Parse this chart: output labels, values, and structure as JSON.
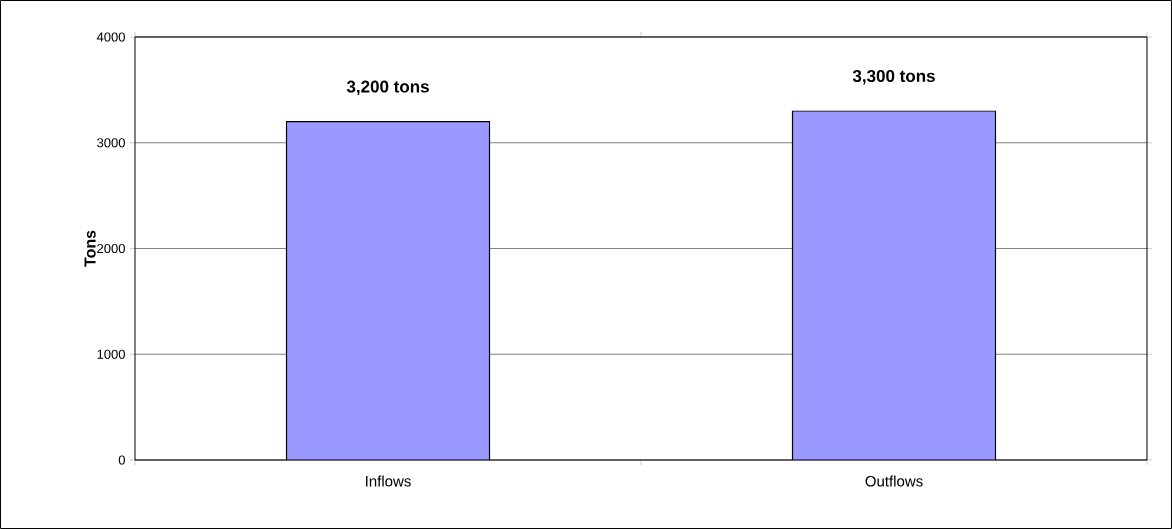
{
  "chart_data": {
    "type": "bar",
    "ylabel": "Tons",
    "categories": [
      "Inflows",
      "Outflows"
    ],
    "values": [
      3200,
      3300
    ],
    "value_labels": [
      "3,200 tons",
      "3,300 tons"
    ],
    "color": "#9999ff",
    "ylim": [
      0,
      4000
    ],
    "yticks": [
      0,
      1000,
      2000,
      3000,
      4000
    ],
    "grid": "y"
  }
}
